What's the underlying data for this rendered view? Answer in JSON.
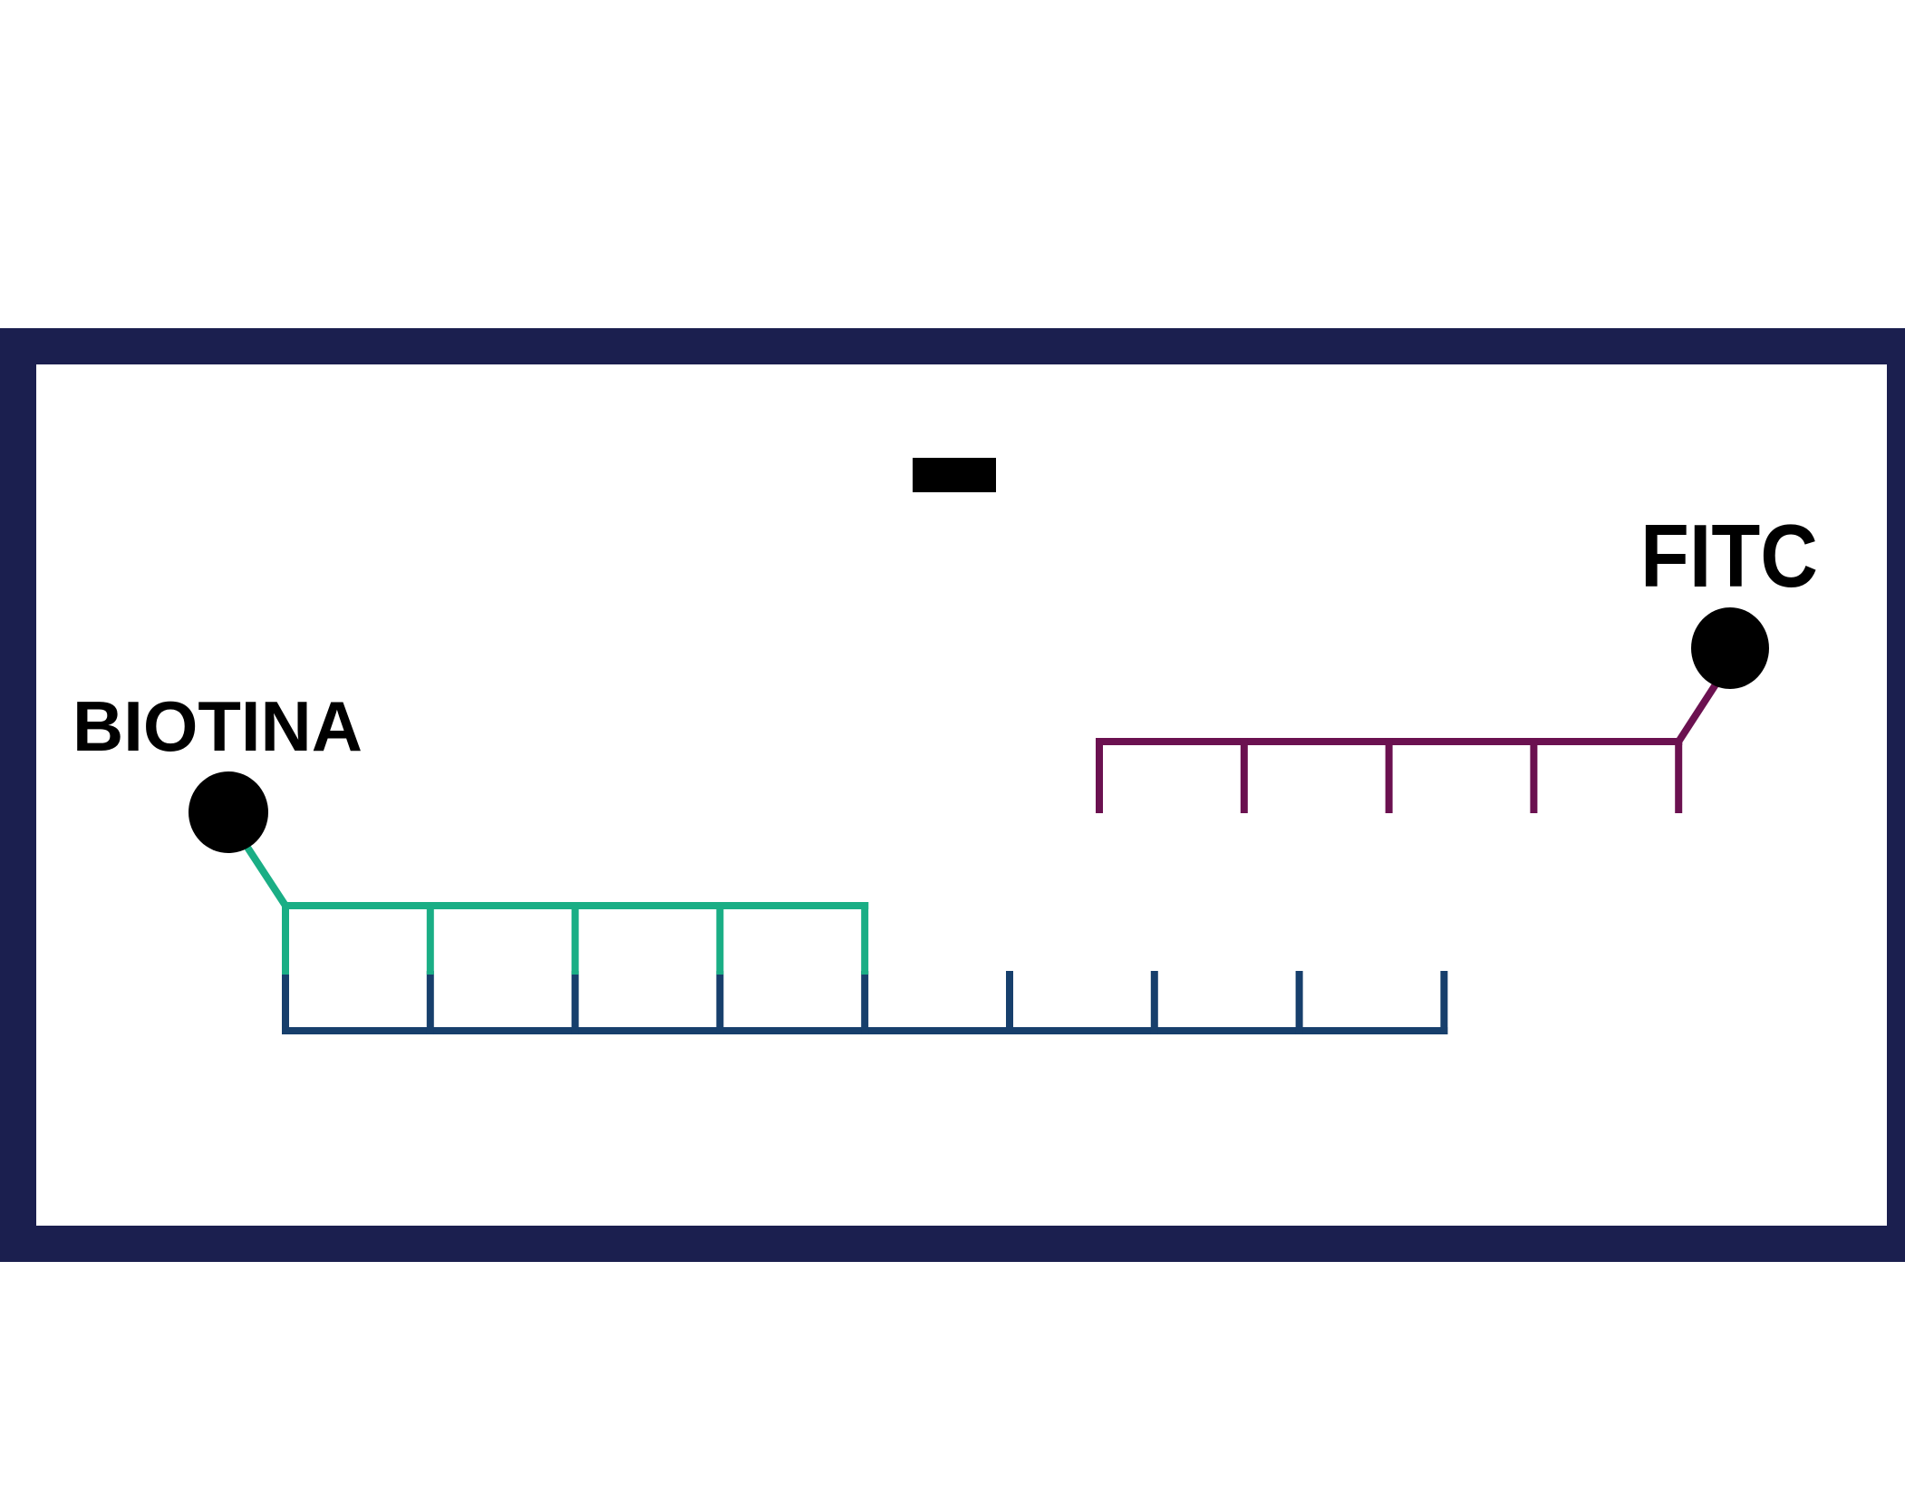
{
  "labels": {
    "left_molecule": "BIOTINA",
    "right_molecule": "FITC",
    "sign": "minus"
  },
  "colors": {
    "frame": "#1b1f4f",
    "biotin_strand": "#1aae85",
    "template_strand": "#173f6c",
    "fitc_strand": "#6b1150",
    "label_dot": "#000000"
  },
  "structure": {
    "template_strand_bases": 9,
    "biotin_strand_bases": 5,
    "fitc_strand_bases": 5
  }
}
